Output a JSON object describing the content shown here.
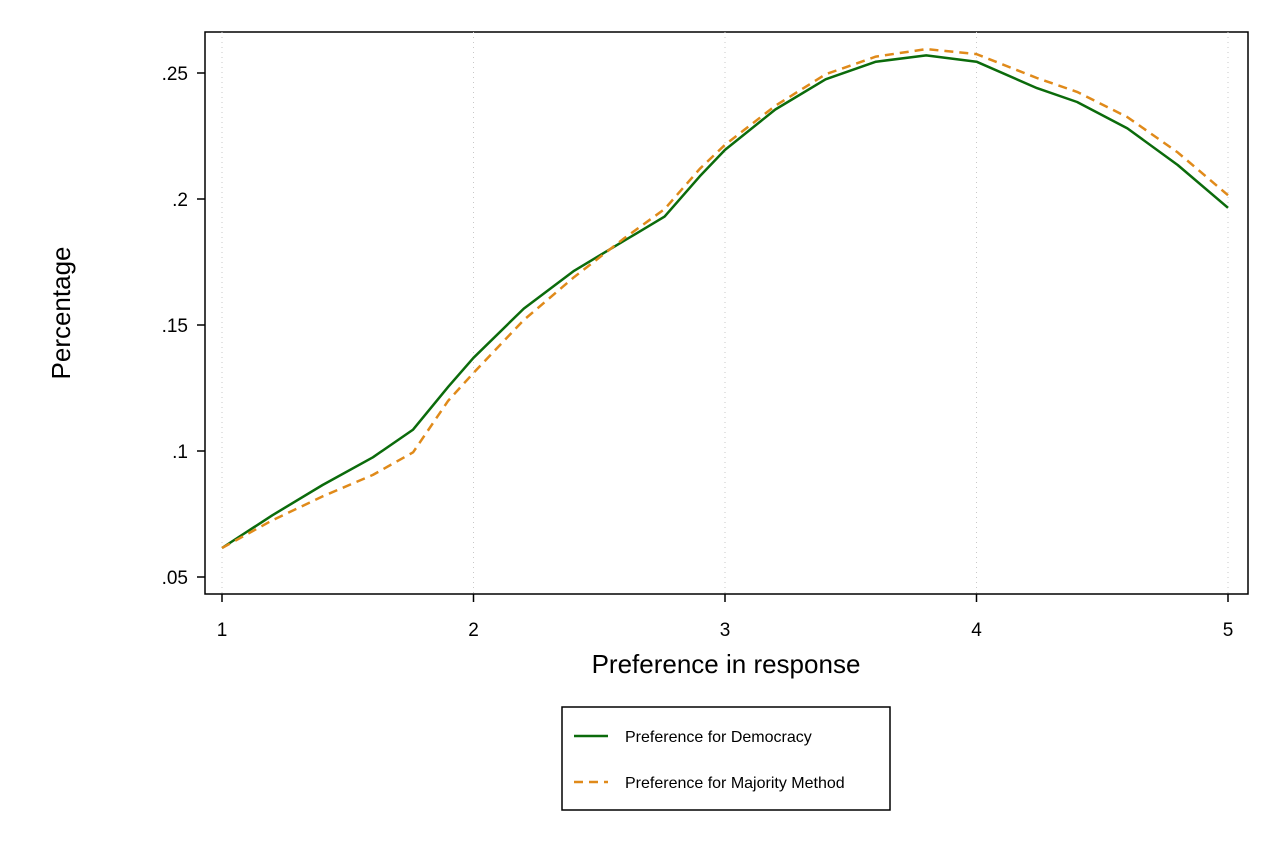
{
  "chart_data": {
    "type": "line",
    "title": "",
    "xlabel": "Preference in response",
    "ylabel": "Percentage",
    "xlim": [
      1,
      5
    ],
    "ylim": [
      0.044,
      0.267
    ],
    "x_ticks": [
      1,
      2,
      3,
      4,
      5
    ],
    "x_tick_labels": [
      "1",
      "2",
      "3",
      "4",
      "5"
    ],
    "y_ticks": [
      0.05,
      0.1,
      0.15,
      0.2,
      0.25
    ],
    "y_tick_labels": [
      ".05",
      ".1",
      ".15",
      ".2",
      ".25"
    ],
    "grid": "vertical dotted at x ticks",
    "legend_position": "bottom",
    "series": [
      {
        "name": "Preference for Democracy",
        "color": "#0b6b0b",
        "dash": "solid",
        "points": [
          [
            1.0,
            0.0615
          ],
          [
            1.2,
            0.0745
          ],
          [
            1.4,
            0.0865
          ],
          [
            1.6,
            0.0975
          ],
          [
            1.76,
            0.1085
          ],
          [
            1.9,
            0.1255
          ],
          [
            2.0,
            0.137
          ],
          [
            2.2,
            0.1565
          ],
          [
            2.4,
            0.1715
          ],
          [
            2.6,
            0.1835
          ],
          [
            2.76,
            0.193
          ],
          [
            2.9,
            0.209
          ],
          [
            3.0,
            0.2195
          ],
          [
            3.2,
            0.2355
          ],
          [
            3.4,
            0.2475
          ],
          [
            3.6,
            0.2545
          ],
          [
            3.8,
            0.257
          ],
          [
            4.0,
            0.2545
          ],
          [
            4.24,
            0.244
          ],
          [
            4.4,
            0.2385
          ],
          [
            4.6,
            0.228
          ],
          [
            4.8,
            0.2135
          ],
          [
            5.0,
            0.1965
          ]
        ]
      },
      {
        "name": "Preference for Majority Method",
        "color": "#e08a1a",
        "dash": "dashed",
        "points": [
          [
            1.0,
            0.0615
          ],
          [
            1.2,
            0.0725
          ],
          [
            1.4,
            0.082
          ],
          [
            1.6,
            0.0905
          ],
          [
            1.76,
            0.0995
          ],
          [
            1.9,
            0.12
          ],
          [
            2.0,
            0.131
          ],
          [
            2.2,
            0.152
          ],
          [
            2.4,
            0.169
          ],
          [
            2.6,
            0.1845
          ],
          [
            2.76,
            0.196
          ],
          [
            2.9,
            0.212
          ],
          [
            3.0,
            0.2215
          ],
          [
            3.2,
            0.237
          ],
          [
            3.4,
            0.2495
          ],
          [
            3.6,
            0.2565
          ],
          [
            3.8,
            0.2595
          ],
          [
            4.0,
            0.2575
          ],
          [
            4.24,
            0.248
          ],
          [
            4.4,
            0.2425
          ],
          [
            4.6,
            0.2325
          ],
          [
            4.8,
            0.2185
          ],
          [
            5.0,
            0.2015
          ]
        ]
      }
    ]
  }
}
